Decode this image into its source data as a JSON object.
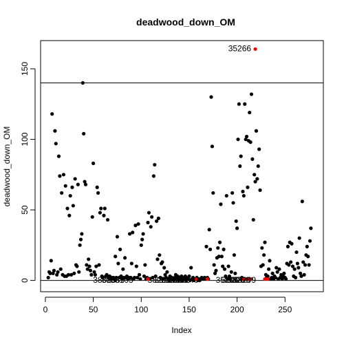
{
  "chart_data": {
    "type": "scatter",
    "title": "deadwood_down_OM",
    "xlabel": "Index",
    "ylabel": "deadwood_down_OM",
    "xlim": [
      -5,
      290
    ],
    "ylim": [
      -8,
      170
    ],
    "x_ticks": [
      0,
      50,
      100,
      150,
      200,
      250
    ],
    "y_ticks": [
      0,
      50,
      100,
      150
    ],
    "hlines": [
      0,
      140
    ],
    "grid": false,
    "legend": "none",
    "colors": {
      "normal": "#000000",
      "outlier": "#ff0000"
    },
    "points_normal": [
      [
        3,
        2
      ],
      [
        4,
        6
      ],
      [
        5,
        5
      ],
      [
        6,
        14
      ],
      [
        7,
        118
      ],
      [
        8,
        5
      ],
      [
        9,
        7
      ],
      [
        10,
        106
      ],
      [
        11,
        97
      ],
      [
        12,
        4
      ],
      [
        13,
        6
      ],
      [
        14,
        88
      ],
      [
        15,
        74
      ],
      [
        16,
        8
      ],
      [
        17,
        62
      ],
      [
        18,
        4
      ],
      [
        19,
        75
      ],
      [
        20,
        3
      ],
      [
        21,
        67
      ],
      [
        22,
        3
      ],
      [
        23,
        51
      ],
      [
        24,
        4
      ],
      [
        25,
        46
      ],
      [
        26,
        60
      ],
      [
        27,
        4
      ],
      [
        28,
        66
      ],
      [
        29,
        53
      ],
      [
        30,
        5
      ],
      [
        31,
        72
      ],
      [
        32,
        11
      ],
      [
        33,
        10
      ],
      [
        34,
        68
      ],
      [
        35,
        6
      ],
      [
        36,
        25
      ],
      [
        37,
        29
      ],
      [
        38,
        33
      ],
      [
        39,
        140
      ],
      [
        40,
        104
      ],
      [
        41,
        70
      ],
      [
        42,
        68
      ],
      [
        43,
        11
      ],
      [
        44,
        8
      ],
      [
        45,
        15
      ],
      [
        46,
        10
      ],
      [
        47,
        7
      ],
      [
        48,
        4
      ],
      [
        49,
        45
      ],
      [
        50,
        83
      ],
      [
        51,
        6
      ],
      [
        52,
        4
      ],
      [
        53,
        10
      ],
      [
        54,
        66
      ],
      [
        55,
        62
      ],
      [
        56,
        11
      ],
      [
        57,
        48
      ],
      [
        58,
        51
      ],
      [
        59,
        3
      ],
      [
        60,
        2
      ],
      [
        61,
        46
      ],
      [
        62,
        51
      ],
      [
        63,
        3
      ],
      [
        64,
        4
      ],
      [
        65,
        43
      ],
      [
        66,
        2
      ],
      [
        67,
        3
      ],
      [
        68,
        1
      ],
      [
        69,
        2
      ],
      [
        70,
        1
      ],
      [
        71,
        2
      ],
      [
        72,
        1
      ],
      [
        73,
        17
      ],
      [
        74,
        2
      ],
      [
        75,
        31
      ],
      [
        76,
        12
      ],
      [
        77,
        2
      ],
      [
        78,
        22
      ],
      [
        79,
        3
      ],
      [
        80,
        1
      ],
      [
        81,
        8
      ],
      [
        82,
        2
      ],
      [
        83,
        16
      ],
      [
        84,
        2
      ],
      [
        85,
        3
      ],
      [
        86,
        1
      ],
      [
        87,
        2
      ],
      [
        88,
        33
      ],
      [
        89,
        2
      ],
      [
        90,
        12
      ],
      [
        91,
        34
      ],
      [
        92,
        1
      ],
      [
        93,
        2
      ],
      [
        94,
        39
      ],
      [
        95,
        10
      ],
      [
        96,
        2
      ],
      [
        97,
        40
      ],
      [
        98,
        4
      ],
      [
        99,
        1
      ],
      [
        100,
        25
      ],
      [
        101,
        29
      ],
      [
        102,
        33
      ],
      [
        103,
        3
      ],
      [
        104,
        11
      ],
      [
        105,
        1
      ],
      [
        106,
        2
      ],
      [
        107,
        41
      ],
      [
        108,
        48
      ],
      [
        109,
        1
      ],
      [
        110,
        38
      ],
      [
        111,
        45
      ],
      [
        112,
        2
      ],
      [
        113,
        74
      ],
      [
        114,
        82
      ],
      [
        115,
        3
      ],
      [
        116,
        42
      ],
      [
        117,
        15
      ],
      [
        118,
        44
      ],
      [
        119,
        18
      ],
      [
        120,
        2
      ],
      [
        121,
        12
      ],
      [
        122,
        13
      ],
      [
        123,
        1
      ],
      [
        124,
        9
      ],
      [
        125,
        4
      ],
      [
        126,
        2
      ],
      [
        127,
        6
      ],
      [
        128,
        1
      ],
      [
        129,
        0
      ],
      [
        130,
        3
      ],
      [
        131,
        1
      ],
      [
        132,
        2
      ],
      [
        133,
        1
      ],
      [
        134,
        0
      ],
      [
        135,
        2
      ],
      [
        136,
        4
      ],
      [
        137,
        1
      ],
      [
        138,
        3
      ],
      [
        139,
        0
      ],
      [
        140,
        2
      ],
      [
        141,
        1
      ],
      [
        142,
        3
      ],
      [
        143,
        0
      ],
      [
        144,
        2
      ],
      [
        145,
        1
      ],
      [
        146,
        3
      ],
      [
        147,
        0
      ],
      [
        148,
        1
      ],
      [
        149,
        2
      ],
      [
        150,
        3
      ],
      [
        151,
        0
      ],
      [
        152,
        9
      ],
      [
        153,
        1
      ],
      [
        154,
        2
      ],
      [
        155,
        0
      ],
      [
        156,
        1
      ],
      [
        157,
        1
      ],
      [
        158,
        2
      ],
      [
        159,
        0
      ],
      [
        160,
        1
      ],
      [
        161,
        0
      ],
      [
        162,
        1
      ],
      [
        163,
        2
      ],
      [
        164,
        1
      ],
      [
        165,
        1
      ],
      [
        166,
        2
      ],
      [
        167,
        1
      ],
      [
        168,
        24
      ],
      [
        169,
        2
      ],
      [
        170,
        1
      ],
      [
        171,
        36
      ],
      [
        172,
        22
      ],
      [
        173,
        130
      ],
      [
        174,
        95
      ],
      [
        175,
        62
      ],
      [
        176,
        11
      ],
      [
        177,
        5
      ],
      [
        178,
        7
      ],
      [
        179,
        16
      ],
      [
        180,
        23
      ],
      [
        181,
        17
      ],
      [
        182,
        27
      ],
      [
        183,
        54
      ],
      [
        184,
        17
      ],
      [
        185,
        10
      ],
      [
        186,
        22
      ],
      [
        187,
        8
      ],
      [
        188,
        3
      ],
      [
        189,
        60
      ],
      [
        190,
        1
      ],
      [
        191,
        10
      ],
      [
        192,
        3
      ],
      [
        193,
        1
      ],
      [
        194,
        6
      ],
      [
        195,
        62
      ],
      [
        196,
        55
      ],
      [
        197,
        18
      ],
      [
        198,
        5
      ],
      [
        199,
        42
      ],
      [
        200,
        37
      ],
      [
        201,
        100
      ],
      [
        202,
        125
      ],
      [
        203,
        81
      ],
      [
        204,
        88
      ],
      [
        205,
        2
      ],
      [
        206,
        63
      ],
      [
        207,
        60
      ],
      [
        208,
        125
      ],
      [
        209,
        100
      ],
      [
        210,
        102
      ],
      [
        211,
        66
      ],
      [
        212,
        99
      ],
      [
        213,
        119
      ],
      [
        214,
        98
      ],
      [
        215,
        132
      ],
      [
        216,
        86
      ],
      [
        217,
        43
      ],
      [
        218,
        75
      ],
      [
        219,
        70
      ],
      [
        220,
        106
      ],
      [
        221,
        72
      ],
      [
        222,
        81
      ],
      [
        223,
        93
      ],
      [
        224,
        64
      ],
      [
        225,
        10
      ],
      [
        226,
        23
      ],
      [
        227,
        11
      ],
      [
        228,
        18
      ],
      [
        229,
        27
      ],
      [
        230,
        4
      ],
      [
        231,
        2
      ],
      [
        232,
        3
      ],
      [
        233,
        8
      ],
      [
        234,
        14
      ],
      [
        235,
        1
      ],
      [
        236,
        2
      ],
      [
        237,
        5
      ],
      [
        238,
        1
      ],
      [
        239,
        3
      ],
      [
        240,
        2
      ],
      [
        241,
        9
      ],
      [
        242,
        6
      ],
      [
        243,
        1
      ],
      [
        244,
        8
      ],
      [
        245,
        2
      ],
      [
        246,
        4
      ],
      [
        247,
        1
      ],
      [
        248,
        3
      ],
      [
        249,
        5
      ],
      [
        250,
        2
      ],
      [
        251,
        1
      ],
      [
        252,
        12
      ],
      [
        253,
        24
      ],
      [
        254,
        11
      ],
      [
        255,
        27
      ],
      [
        256,
        13
      ],
      [
        257,
        26
      ],
      [
        258,
        10
      ],
      [
        259,
        3
      ],
      [
        260,
        8
      ],
      [
        261,
        2
      ],
      [
        262,
        20
      ],
      [
        263,
        12
      ],
      [
        264,
        9
      ],
      [
        265,
        30
      ],
      [
        266,
        5
      ],
      [
        267,
        3
      ],
      [
        268,
        56
      ],
      [
        269,
        13
      ],
      [
        270,
        4
      ],
      [
        271,
        11
      ],
      [
        272,
        18
      ],
      [
        273,
        24
      ],
      [
        274,
        17
      ],
      [
        275,
        11
      ],
      [
        276,
        28
      ],
      [
        277,
        37
      ]
    ],
    "points_outlier": [
      [
        107,
        1
      ],
      [
        157,
        1
      ],
      [
        169,
        1
      ],
      [
        206,
        1
      ],
      [
        209,
        1
      ],
      [
        211,
        1
      ],
      [
        213,
        1
      ],
      [
        215,
        1
      ],
      [
        229,
        1
      ],
      [
        232,
        1
      ],
      [
        219,
        164
      ]
    ],
    "point_labels": [
      {
        "x": 219,
        "y": 164,
        "text": "35266"
      },
      {
        "x": 78,
        "y": 0,
        "text": "38025"
      },
      {
        "x": 87,
        "y": 0,
        "text": "38089"
      },
      {
        "x": 96,
        "y": 0,
        "text": "38105"
      },
      {
        "x": 135,
        "y": 0,
        "text": "38205"
      },
      {
        "x": 142,
        "y": 0,
        "text": "38213"
      },
      {
        "x": 149,
        "y": 0,
        "text": "38250"
      },
      {
        "x": 156,
        "y": 0,
        "text": "38260"
      },
      {
        "x": 164,
        "y": 0,
        "text": "35240"
      },
      {
        "x": 206,
        "y": 0,
        "text": "35206"
      },
      {
        "x": 212,
        "y": 0,
        "text": "38206"
      },
      {
        "x": 218,
        "y": 0,
        "text": "38208"
      },
      {
        "x": 224,
        "y": 0,
        "text": "38209"
      }
    ]
  }
}
